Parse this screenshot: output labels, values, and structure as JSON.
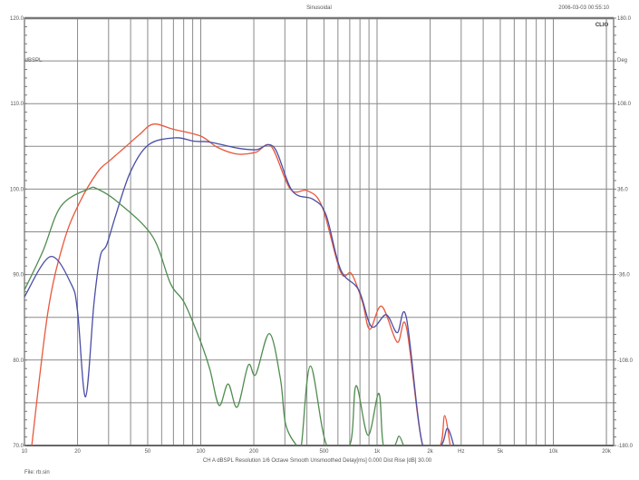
{
  "header": {
    "title": "Sinusoidal",
    "timestamp": "2006-03-03 00:55:10",
    "logo": "CLIO"
  },
  "footer": {
    "settings": "CH A  dBSPL  Resolution 1/6 Octave  Smooth Unsmoothed  Delay[ms] 0.000  Dist Rise [dB] 30.00",
    "file": "File: rb.sin"
  },
  "chart_data": {
    "type": "line",
    "title": "Sinusoidal",
    "x_scale": "log",
    "xlim": [
      10,
      20000
    ],
    "ylim": [
      70,
      120
    ],
    "y2lim": [
      -180,
      180
    ],
    "ylabel": "dBSPL",
    "y2label": "Deg",
    "xunit": "Hz",
    "grid": true,
    "x_ticks": [
      {
        "value": 10,
        "label": "10"
      },
      {
        "value": 20,
        "label": "20"
      },
      {
        "value": 50,
        "label": "50"
      },
      {
        "value": 100,
        "label": "100"
      },
      {
        "value": 200,
        "label": "200"
      },
      {
        "value": 500,
        "label": "500"
      },
      {
        "value": 1000,
        "label": "1k"
      },
      {
        "value": 2000,
        "label": "2k"
      },
      {
        "value": 3000,
        "label": "Hz"
      },
      {
        "value": 5000,
        "label": "5k"
      },
      {
        "value": 10000,
        "label": "10k"
      },
      {
        "value": 20000,
        "label": "20k"
      }
    ],
    "y_ticks": [
      "120.0",
      "110.0",
      "100.0",
      "90.0",
      "80.0",
      "70.0"
    ],
    "y2_ticks": [
      "180.0",
      "108.0",
      "36.0",
      "-36.0",
      "-108.0",
      "-180.0"
    ],
    "series": [
      {
        "color": "#e8583c",
        "points": [
          [
            11,
            70
          ],
          [
            13.6,
            85.7
          ],
          [
            16.7,
            93.8
          ],
          [
            20.5,
            98.4
          ],
          [
            26,
            102
          ],
          [
            30.3,
            103.3
          ],
          [
            37.2,
            104.9
          ],
          [
            45,
            106.4
          ],
          [
            53.8,
            107.6
          ],
          [
            70,
            107
          ],
          [
            100,
            106.2
          ],
          [
            124,
            104.9
          ],
          [
            161,
            104.1
          ],
          [
            205,
            104.3
          ],
          [
            251,
            105
          ],
          [
            322,
            100
          ],
          [
            404,
            99.8
          ],
          [
            489,
            97.9
          ],
          [
            621,
            90.3
          ],
          [
            716,
            90.1
          ],
          [
            826,
            86.8
          ],
          [
            909,
            83.6
          ],
          [
            1062,
            86.3
          ],
          [
            1300,
            82.1
          ],
          [
            1465,
            83.9
          ],
          [
            1816,
            70
          ],
          [
            2278,
            70
          ],
          [
            2418,
            73.5
          ],
          [
            2600,
            70
          ]
        ]
      },
      {
        "color": "#4a4ea6",
        "points": [
          [
            10,
            87.4
          ],
          [
            14,
            92.1
          ],
          [
            18.4,
            88.9
          ],
          [
            20,
            85.7
          ],
          [
            22.2,
            75.7
          ],
          [
            24.8,
            86.7
          ],
          [
            26.9,
            92.1
          ],
          [
            29.3,
            93.5
          ],
          [
            33,
            97
          ],
          [
            39.9,
            102
          ],
          [
            50.7,
            105.2
          ],
          [
            71.6,
            106
          ],
          [
            92,
            105.6
          ],
          [
            112.7,
            105.5
          ],
          [
            161,
            104.8
          ],
          [
            205,
            104.6
          ],
          [
            260,
            104.9
          ],
          [
            330,
            99.8
          ],
          [
            434,
            98.8
          ],
          [
            513,
            97
          ],
          [
            621,
            90.6
          ],
          [
            787,
            88.2
          ],
          [
            931,
            83.9
          ],
          [
            1127,
            85.3
          ],
          [
            1300,
            83.2
          ],
          [
            1465,
            85
          ],
          [
            1816,
            70
          ],
          [
            2300,
            70
          ],
          [
            2506,
            72
          ],
          [
            2724,
            70
          ]
        ]
      },
      {
        "color": "#4f8c4f",
        "points": [
          [
            10,
            88.2
          ],
          [
            12.7,
            92.7
          ],
          [
            16.1,
            98
          ],
          [
            23,
            100
          ],
          [
            26,
            100
          ],
          [
            34.2,
            98.4
          ],
          [
            53.1,
            94.5
          ],
          [
            67.5,
            88.9
          ],
          [
            80.7,
            86.7
          ],
          [
            100,
            82.1
          ],
          [
            112.7,
            78.9
          ],
          [
            127,
            74.7
          ],
          [
            143,
            77.2
          ],
          [
            161,
            74.5
          ],
          [
            186,
            79.4
          ],
          [
            205,
            78.3
          ],
          [
            245,
            83.1
          ],
          [
            283,
            77.8
          ],
          [
            303,
            72.5
          ],
          [
            350,
            70
          ],
          [
            372,
            70
          ],
          [
            419,
            79.3
          ],
          [
            519,
            70
          ],
          [
            699,
            70
          ],
          [
            760,
            77
          ],
          [
            888,
            71.2
          ],
          [
            1024,
            76.1
          ],
          [
            1087,
            70
          ],
          [
            1254,
            70
          ],
          [
            1331,
            71.1
          ],
          [
            1413,
            70
          ]
        ]
      }
    ]
  }
}
